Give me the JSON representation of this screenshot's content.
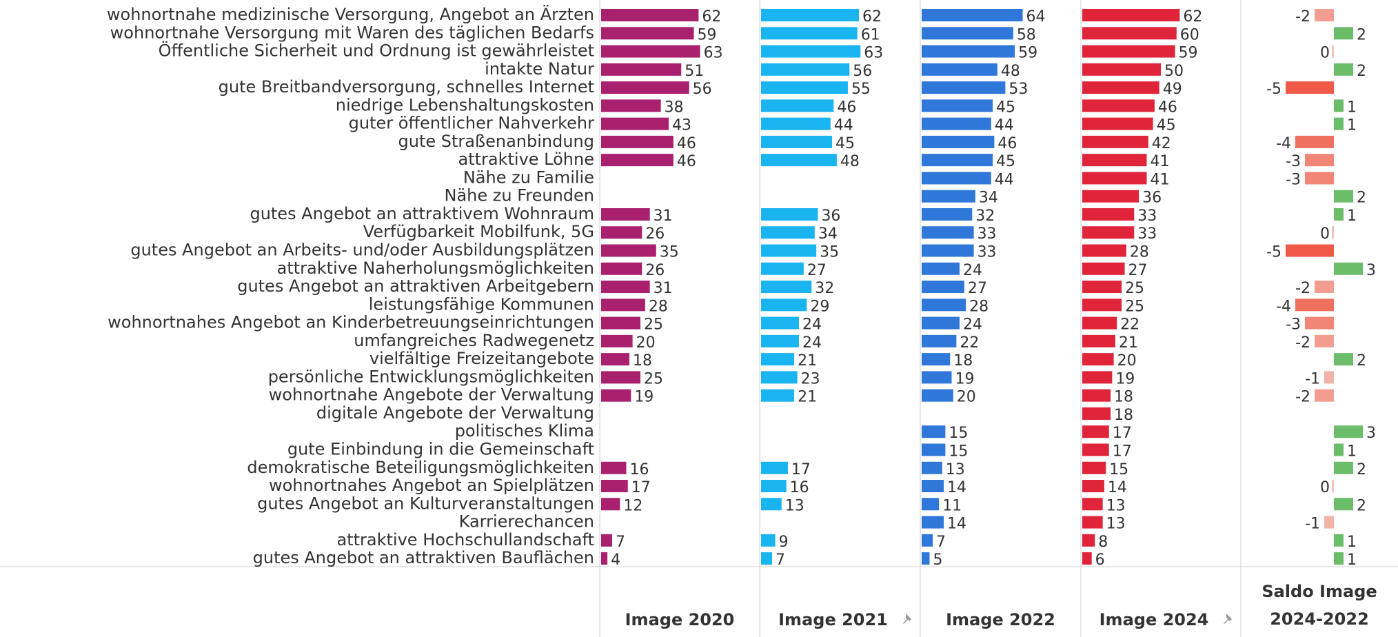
{
  "chart_data": {
    "type": "bar",
    "orientation": "horizontal",
    "categories": [
      "wohnortnahe medizinische Versorgung, Angebot an Ärzten",
      "wohnortnahe Versorgung mit Waren des täglichen Bedarfs",
      "Öffentliche Sicherheit und Ordnung ist gewährleistet",
      "intakte Natur",
      "gute Breitbandversorgung, schnelles Internet",
      "niedrige Lebenshaltungskosten",
      "guter öffentlicher Nahverkehr",
      "gute Straßenanbindung",
      "attraktive Löhne",
      "Nähe zu Familie",
      "Nähe zu Freunden",
      "gutes Angebot an attraktivem Wohnraum",
      "Verfügbarkeit Mobilfunk, 5G",
      "gutes Angebot an Arbeits- und/oder Ausbildungsplätzen",
      "attraktive Naherholungsmöglichkeiten",
      "gutes Angebot an attraktiven Arbeitgebern",
      "leistungsfähige Kommunen",
      "wohnortnahes Angebot an Kinderbetreuungseinrichtungen",
      "umfangreiches Radwegenetz",
      "vielfältige Freizeitangebote",
      "persönliche Entwicklungsmöglichkeiten",
      "wohnortnahe Angebote der Verwaltung",
      "digitale Angebote der Verwaltung",
      "politisches Klima",
      "gute Einbindung in die Gemeinschaft",
      "demokratische Beteiligungsmöglichkeiten",
      "wohnortnahes Angebot an Spielplätzen",
      "gutes Angebot an Kulturveranstaltungen",
      "Karrierechancen",
      "attraktive Hochschullandschaft",
      "gutes Angebot an attraktiven Bauflächen"
    ],
    "series": [
      {
        "name": "Image 2020",
        "color": "#a8206e",
        "xlim": [
          0,
          100
        ],
        "pinned": false,
        "values": [
          62,
          59,
          63,
          51,
          56,
          38,
          43,
          46,
          46,
          null,
          null,
          31,
          26,
          35,
          26,
          31,
          28,
          25,
          20,
          18,
          25,
          19,
          null,
          null,
          null,
          16,
          17,
          12,
          null,
          7,
          4
        ]
      },
      {
        "name": "Image 2021",
        "color": "#1ab4f0",
        "xlim": [
          0,
          100
        ],
        "pinned": true,
        "values": [
          62,
          61,
          63,
          56,
          55,
          46,
          44,
          45,
          48,
          null,
          null,
          36,
          34,
          35,
          27,
          32,
          29,
          24,
          24,
          21,
          23,
          21,
          null,
          null,
          null,
          17,
          16,
          13,
          null,
          9,
          7
        ]
      },
      {
        "name": "Image 2022",
        "color": "#2f77d9",
        "xlim": [
          0,
          100
        ],
        "pinned": false,
        "values": [
          64,
          58,
          59,
          48,
          53,
          45,
          44,
          46,
          45,
          44,
          34,
          32,
          33,
          33,
          24,
          27,
          28,
          24,
          22,
          18,
          19,
          20,
          null,
          15,
          15,
          13,
          14,
          11,
          14,
          7,
          5
        ]
      },
      {
        "name": "Image 2024",
        "color": "#e0243a",
        "xlim": [
          0,
          100
        ],
        "pinned": true,
        "values": [
          62,
          60,
          59,
          50,
          49,
          46,
          45,
          42,
          41,
          41,
          36,
          33,
          33,
          28,
          27,
          25,
          25,
          22,
          21,
          20,
          19,
          18,
          18,
          17,
          17,
          15,
          14,
          13,
          13,
          8,
          6
        ]
      },
      {
        "name": "Saldo Image 2024-2022",
        "color": "#6cbd6a",
        "color_negative": "#ee5a47",
        "xlim": [
          -9.5,
          6.5
        ],
        "pinned": false,
        "values": [
          -2,
          2,
          0,
          2,
          -5,
          1,
          1,
          -4,
          -3,
          -3,
          2,
          1,
          0,
          -5,
          3,
          -2,
          -4,
          -3,
          -2,
          2,
          -1,
          -2,
          null,
          3,
          1,
          2,
          0,
          2,
          -1,
          1,
          1
        ]
      }
    ]
  }
}
